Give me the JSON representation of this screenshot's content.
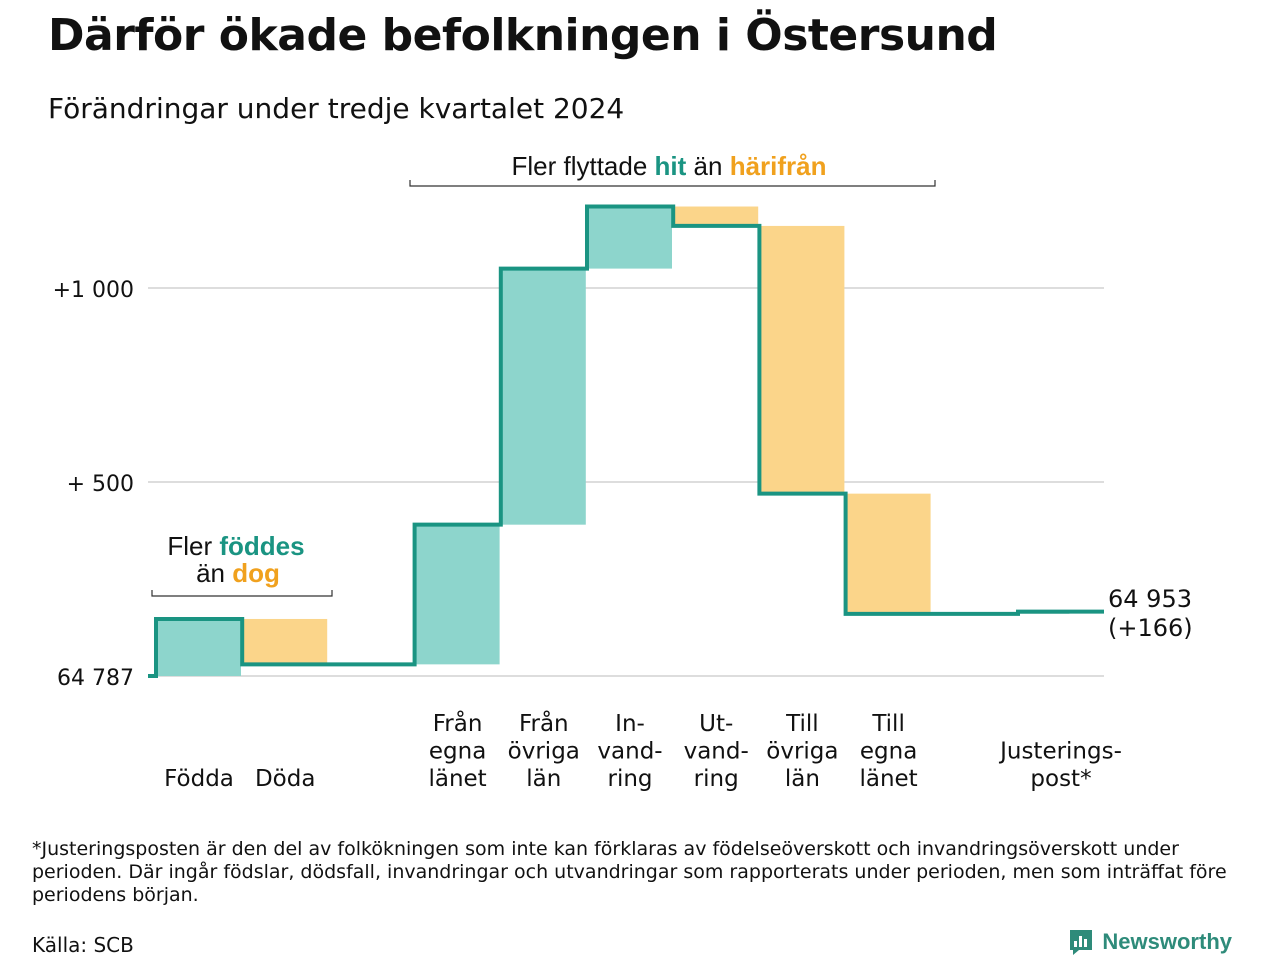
{
  "header": {
    "title": "Därför ökade befolkningen i Östersund",
    "subtitle": "Förändringar under tredje kvartalet 2024"
  },
  "annotations": {
    "births": {
      "line1_prefix": "Fler ",
      "line1_highlight": "föddes",
      "line2_prefix": "än ",
      "line2_highlight": "dog"
    },
    "migration": {
      "prefix": "Fler flyttade ",
      "highlight_in": "hit",
      "middle": " än ",
      "highlight_out": "härifrån"
    }
  },
  "end_label": {
    "value": "64 953",
    "change": "(+166)"
  },
  "colors": {
    "increase_fill": "#8dd5cc",
    "decrease_fill": "#fbd58a",
    "adjustment_fill": "#b8d8d3",
    "line": "#1a9482",
    "highlight_in": "#1a9482",
    "highlight_out": "#f0a11e",
    "grid": "#dddddd",
    "text": "#111111"
  },
  "chart_data": {
    "type": "waterfall",
    "baseline": 64787,
    "end_total": 64953,
    "y_ticks": [
      {
        "value": 0,
        "label": "64 787"
      },
      {
        "value": 500,
        "label": "+  500"
      },
      {
        "value": 1000,
        "label": "+1 000"
      }
    ],
    "y_unit": "change from 64 787",
    "ylim": [
      0,
      1250
    ],
    "grid": true,
    "bars": [
      {
        "label_lines": [
          "Födda"
        ],
        "change": 147,
        "kind": "increase",
        "start": 0,
        "end": 147
      },
      {
        "label_lines": [
          "Döda"
        ],
        "change": -117,
        "kind": "decrease",
        "start": 147,
        "end": 30
      },
      {
        "label_lines": [
          "Från",
          "egna",
          "länet"
        ],
        "change": 360,
        "kind": "increase",
        "start": 30,
        "end": 390
      },
      {
        "label_lines": [
          "Från",
          "övriga",
          "län"
        ],
        "change": 660,
        "kind": "increase",
        "start": 390,
        "end": 1050
      },
      {
        "label_lines": [
          "In-",
          "vand-",
          "ring"
        ],
        "change": 160,
        "kind": "increase",
        "start": 1050,
        "end": 1210
      },
      {
        "label_lines": [
          "Ut-",
          "vand-",
          "ring"
        ],
        "change": -50,
        "kind": "decrease",
        "start": 1210,
        "end": 1160
      },
      {
        "label_lines": [
          "Till",
          "övriga",
          "län"
        ],
        "change": -690,
        "kind": "decrease",
        "start": 1160,
        "end": 470
      },
      {
        "label_lines": [
          "Till",
          "egna",
          "länet"
        ],
        "change": -310,
        "kind": "decrease",
        "start": 470,
        "end": 160
      },
      {
        "label_lines": [
          "Justerings-",
          "post*"
        ],
        "change": 6,
        "kind": "adjustment",
        "start": 160,
        "end": 166
      }
    ]
  },
  "footer": {
    "footnote": "*Justeringsposten är den del av folkökningen som inte kan förklaras av födelseöverskott och invandringsöverskott under perioden. Där ingår födslar, dödsfall, invandringar och utvandringar som rapporterats under perioden, men som inträffat före periodens början.",
    "source": "Källa: SCB",
    "brand": "Newsworthy"
  }
}
